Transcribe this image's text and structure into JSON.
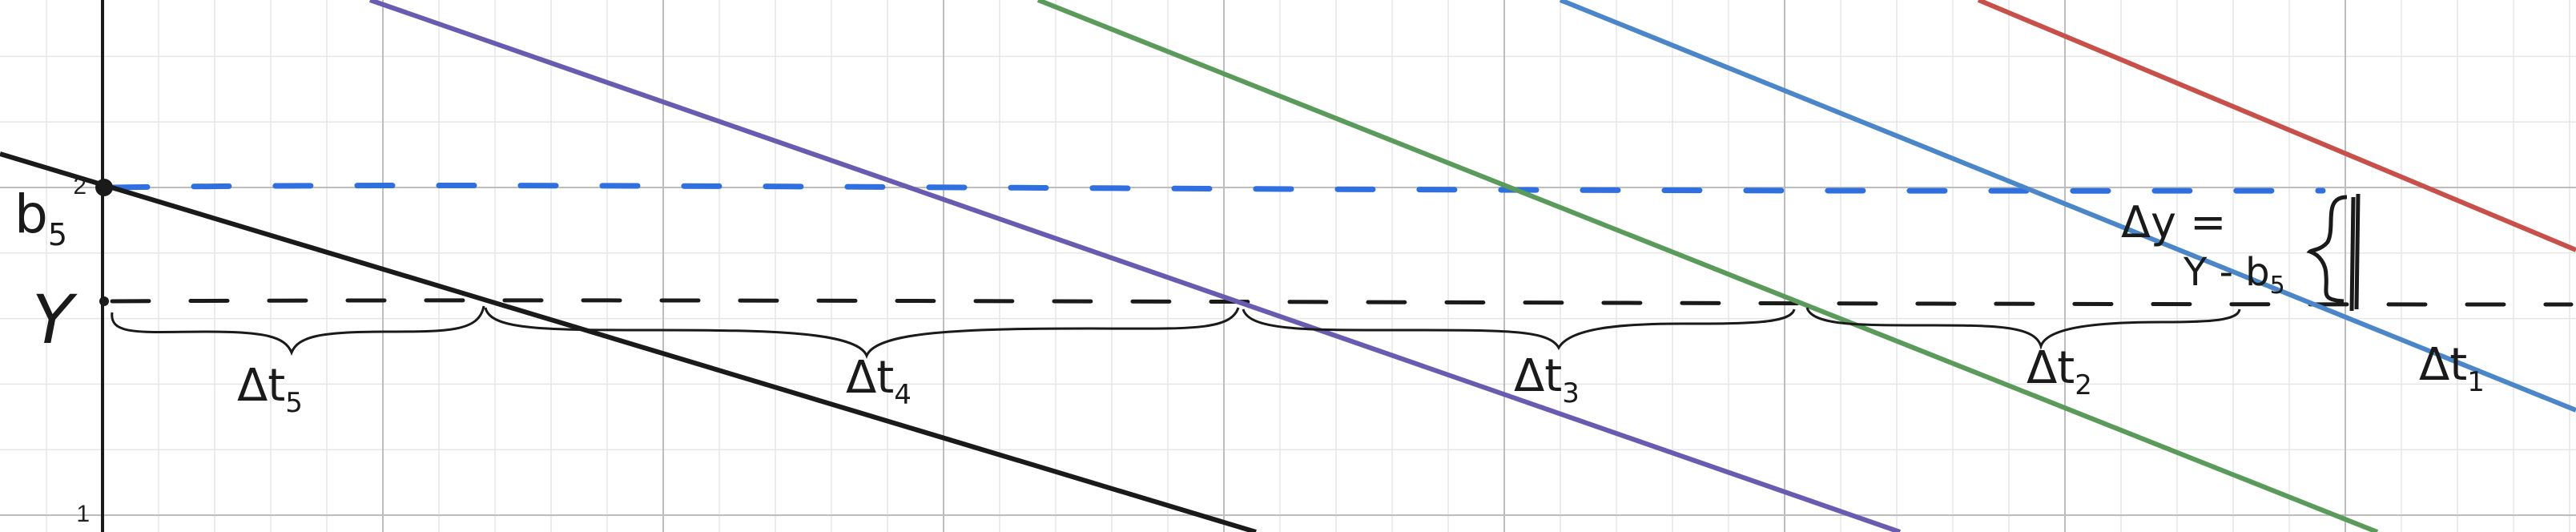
{
  "axes": {
    "y_tick_labels": [
      "2",
      "1"
    ]
  },
  "annotations": {
    "b5": {
      "main": "b",
      "sub": "5"
    },
    "y": "Y",
    "dy_line1": "Δy =",
    "dy_line2_main": "Y - b",
    "dy_line2_sub": "5",
    "dt5": {
      "main": "Δt",
      "sub": "5"
    },
    "dt4": {
      "main": "Δt",
      "sub": "4"
    },
    "dt3": {
      "main": "Δt",
      "sub": "3"
    },
    "dt2": {
      "main": "Δt",
      "sub": "2"
    },
    "dt1": {
      "main": "Δt",
      "sub": "1"
    }
  },
  "colors": {
    "black_line": "#1a1a1a",
    "purple_line": "#6a5bb0",
    "green_line": "#5a9a5a",
    "blue_line": "#4a86c8",
    "red_line": "#c8504a",
    "blue_dashed": "#2f6fe0",
    "black_dashed": "#1a1a1a",
    "grid_major": "#bdbdbd",
    "grid_minor": "#e6e6e6"
  }
}
